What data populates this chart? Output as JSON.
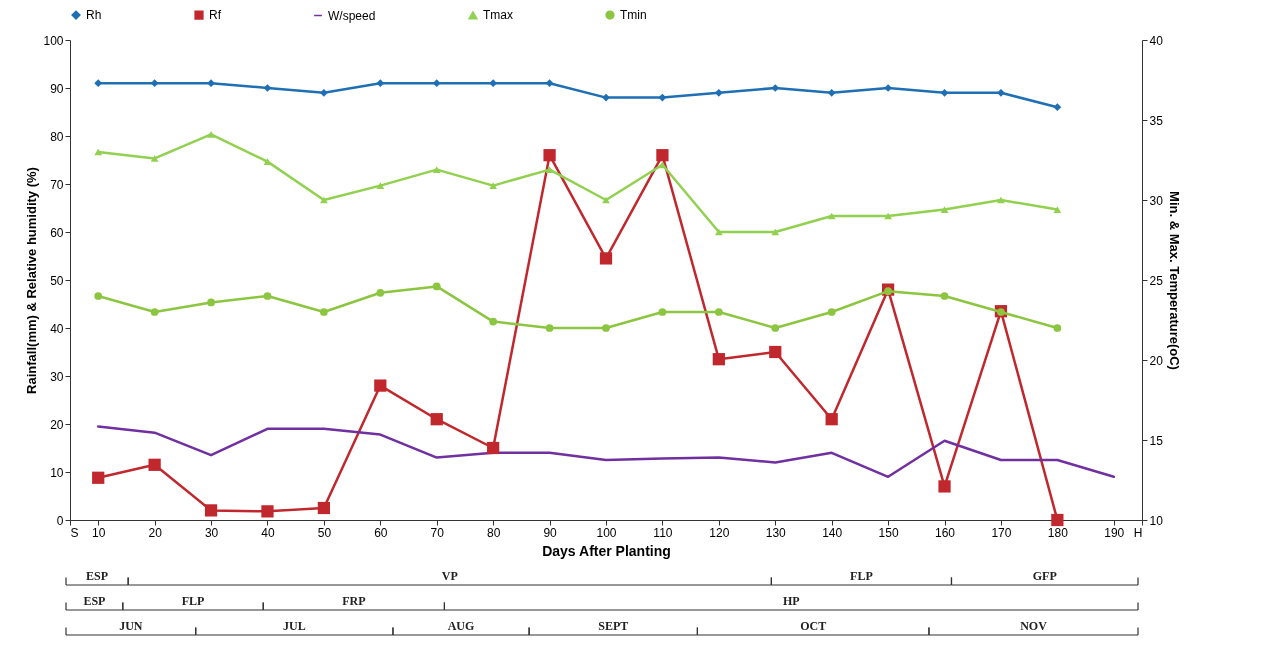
{
  "chart_data": [
    {
      "type": "line",
      "xlabel": "Days After Planting",
      "ylabel": "Rainfall(mm) & Relative humidity (%)",
      "y2label": "Min. & Max. Temperature(oC)",
      "x": [
        10,
        20,
        30,
        40,
        50,
        60,
        70,
        80,
        90,
        100,
        110,
        120,
        130,
        140,
        150,
        160,
        170,
        180,
        190
      ],
      "xlim": [
        5,
        195
      ],
      "xticks": [
        {
          "value": 5,
          "label": "S"
        },
        10,
        20,
        30,
        40,
        50,
        60,
        70,
        80,
        90,
        100,
        110,
        120,
        130,
        140,
        150,
        160,
        170,
        180,
        190,
        {
          "value": 195,
          "label": "H"
        }
      ],
      "ylim": [
        0,
        100
      ],
      "yticks": [
        0,
        10,
        20,
        30,
        40,
        50,
        60,
        70,
        80,
        90,
        100
      ],
      "y2lim": [
        10,
        40
      ],
      "y2ticks": [
        10,
        15,
        20,
        25,
        30,
        35,
        40
      ],
      "legend": "top",
      "line_style": "solid",
      "series": [
        {
          "name": "Rh",
          "color": "#1f6fb5",
          "marker": "diamond",
          "values": [
            91,
            91,
            91,
            90,
            89,
            91,
            91,
            91,
            91,
            88,
            88,
            89,
            90,
            89,
            90,
            89,
            89,
            86,
            null
          ]
        },
        {
          "name": "Rf",
          "color": "#c0282d",
          "marker": "square",
          "values": [
            8.8,
            11.5,
            2,
            1.8,
            2.5,
            28,
            21,
            15,
            76,
            54.5,
            76,
            33.5,
            35,
            21,
            48,
            7,
            43.5,
            0,
            null
          ]
        },
        {
          "name": "W/speed",
          "color": "#7030a0",
          "marker": "none",
          "values": [
            19.5,
            18.2,
            13.5,
            19,
            19,
            17.8,
            13,
            14,
            14,
            12.5,
            12.8,
            13,
            12,
            14,
            9,
            16.5,
            12.5,
            12.5,
            9
          ]
        },
        {
          "name": "Tmax",
          "color": "#92d050",
          "marker": "triangle",
          "axis": "y2",
          "values": [
            33,
            32.6,
            34.1,
            32.4,
            30,
            30.9,
            31.9,
            30.9,
            31.9,
            30,
            32.2,
            28,
            28,
            29,
            29,
            29.4,
            30,
            29.4,
            null
          ]
        },
        {
          "name": "Tmin",
          "color": "#8cc540",
          "marker": "circle",
          "axis": "y2",
          "values": [
            24,
            23,
            23.6,
            24,
            23,
            24.2,
            24.6,
            22.4,
            22,
            22,
            23,
            23,
            22,
            23,
            24.3,
            24,
            23,
            22,
            null
          ]
        }
      ]
    },
    {
      "type": "other",
      "annotations": [
        "ESP",
        "VP",
        "FLP",
        "GFP",
        "ESP",
        "FLP",
        "FRP",
        "HP",
        "JUN",
        "JUL",
        "AUG",
        "SEPT",
        "OCT",
        "NOV"
      ]
    }
  ]
}
